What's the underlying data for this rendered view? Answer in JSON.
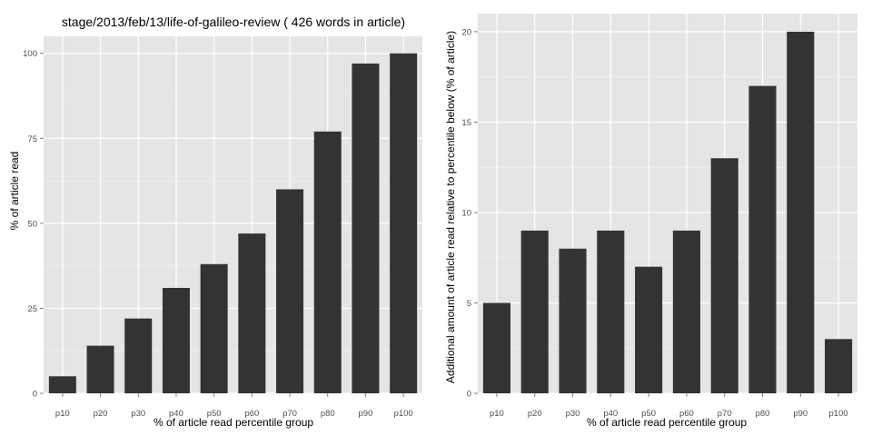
{
  "chart_data": [
    {
      "type": "bar",
      "title": "stage/2013/feb/13/life-of-galileo-review ( 426 words in article)",
      "xlabel": "% of article read percentile group",
      "ylabel": "% of article read",
      "categories": [
        "p10",
        "p20",
        "p30",
        "p40",
        "p50",
        "p60",
        "p70",
        "p80",
        "p90",
        "p100"
      ],
      "values": [
        5,
        14,
        22,
        31,
        38,
        47,
        60,
        77,
        97,
        100
      ],
      "ylim": [
        0,
        105
      ],
      "yticks": [
        0,
        25,
        50,
        75,
        100
      ],
      "grid": true,
      "colors": {
        "panel": "#e5e5e5",
        "bar": "#333333",
        "grid": "#ffffff",
        "tick_text": "#4d4d4d"
      }
    },
    {
      "type": "bar",
      "title": "",
      "xlabel": "% of article read percentile group",
      "ylabel": "Additional amount of article read relative to percentile below (% of article)",
      "categories": [
        "p10",
        "p20",
        "p30",
        "p40",
        "p50",
        "p60",
        "p70",
        "p80",
        "p90",
        "p100"
      ],
      "values": [
        5,
        9,
        8,
        9,
        7,
        9,
        13,
        17,
        20,
        3
      ],
      "ylim": [
        0,
        21
      ],
      "yticks": [
        0,
        5,
        10,
        15,
        20
      ],
      "grid": true,
      "colors": {
        "panel": "#e5e5e5",
        "bar": "#333333",
        "grid": "#ffffff",
        "tick_text": "#4d4d4d"
      }
    }
  ]
}
